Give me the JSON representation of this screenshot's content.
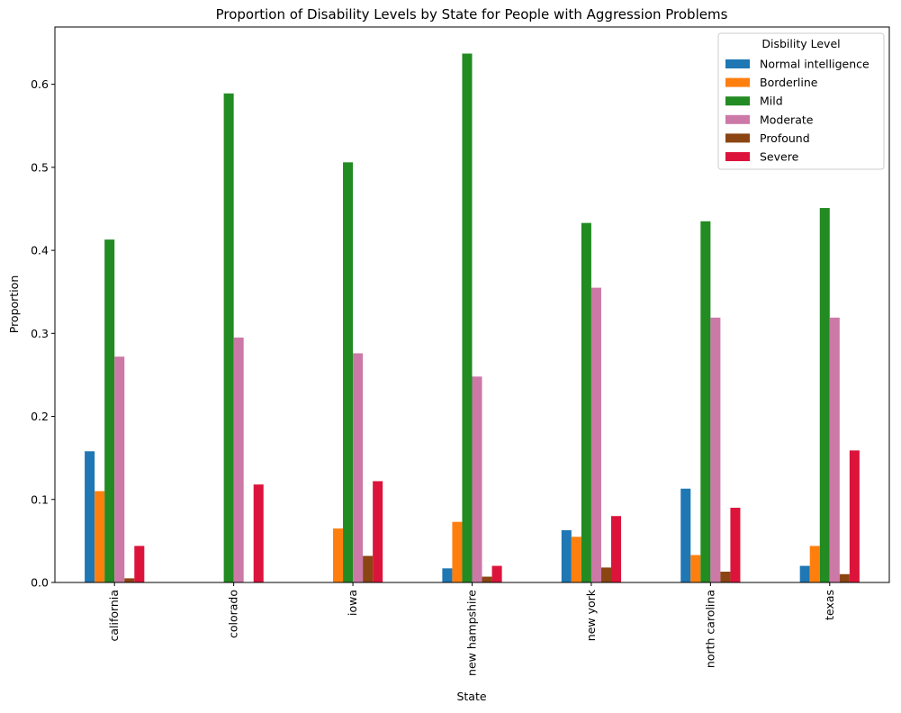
{
  "chart_data": {
    "type": "bar",
    "title": "Proportion of Disability Levels by State for People with Aggression Problems",
    "x_label": "State",
    "y_label": "Proportion",
    "legend_title": "Disbility Level",
    "legend_position": "upper right",
    "categories": [
      "california",
      "colorado",
      "iowa",
      "new hampshire",
      "new york",
      "north carolina",
      "texas"
    ],
    "series": [
      {
        "name": "Normal intelligence",
        "color": "#1f77b4",
        "values": [
          0.158,
          0,
          0,
          0.017,
          0.063,
          0.113,
          0.02
        ]
      },
      {
        "name": "Borderline",
        "color": "#ff7f0e",
        "values": [
          0.11,
          0,
          0.065,
          0.073,
          0.055,
          0.033,
          0.044
        ]
      },
      {
        "name": "Mild",
        "color": "#228b22",
        "values": [
          0.413,
          0.589,
          0.506,
          0.637,
          0.433,
          0.435,
          0.451
        ]
      },
      {
        "name": "Moderate",
        "color": "#cc79a7",
        "values": [
          0.272,
          0.295,
          0.276,
          0.248,
          0.355,
          0.319,
          0.319
        ]
      },
      {
        "name": "Profound",
        "color": "#8b4513",
        "values": [
          0.005,
          0,
          0.032,
          0.007,
          0.018,
          0.013,
          0.01
        ]
      },
      {
        "name": "Severe",
        "color": "#dc143c",
        "values": [
          0.044,
          0.118,
          0.122,
          0.02,
          0.08,
          0.09,
          0.159
        ]
      }
    ],
    "ylim": [
      0,
      0.669
    ],
    "yticks": [
      {
        "value": 0,
        "label": "0.0"
      },
      0.1,
      0.2,
      0.3,
      0.4,
      0.5,
      0.6
    ],
    "grid": false
  }
}
